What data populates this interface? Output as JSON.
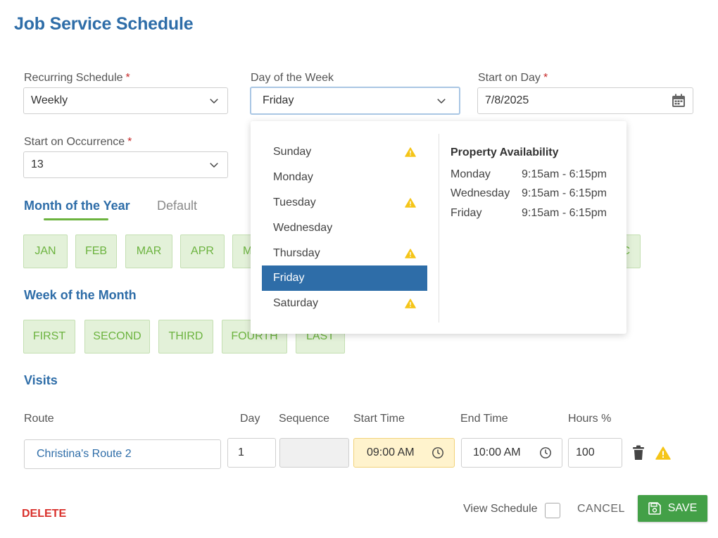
{
  "page": {
    "title": "Job Service Schedule"
  },
  "form": {
    "recurring": {
      "label": "Recurring Schedule",
      "value": "Weekly"
    },
    "day_of_week": {
      "label": "Day of the Week",
      "value": "Friday"
    },
    "start_on_day": {
      "label": "Start on Day",
      "value": "7/8/2025"
    },
    "start_on_occurrence": {
      "label": "Start on Occurrence",
      "value": "13"
    },
    "required_marker": "*"
  },
  "tabs": [
    {
      "label": "Month of the Year",
      "active": true
    },
    {
      "label": "Default",
      "active": false
    }
  ],
  "months": [
    "JAN",
    "FEB",
    "MAR",
    "APR",
    "M",
    "C"
  ],
  "week_section": {
    "title": "Week of the Month",
    "weeks": [
      "FIRST",
      "SECOND",
      "THIRD",
      "FOURTH",
      "LAST"
    ]
  },
  "visits": {
    "title": "Visits",
    "columns": [
      "Route",
      "Day",
      "Sequence",
      "Start Time",
      "End Time",
      "Hours %"
    ],
    "row": {
      "route": "Christina's Route 2",
      "day": "1",
      "sequence": "",
      "start_time": "09:00 AM",
      "end_time": "10:00 AM",
      "hours_pct": "100"
    }
  },
  "footer": {
    "delete_label": "DELETE",
    "view_schedule_label": "View Schedule",
    "view_schedule_checked": false,
    "cancel_label": "CANCEL",
    "save_label": "SAVE"
  },
  "dropdown": {
    "options": [
      {
        "label": "Sunday",
        "warning": true,
        "selected": false
      },
      {
        "label": "Monday",
        "warning": false,
        "selected": false
      },
      {
        "label": "Tuesday",
        "warning": true,
        "selected": false
      },
      {
        "label": "Wednesday",
        "warning": false,
        "selected": false
      },
      {
        "label": "Thursday",
        "warning": true,
        "selected": false
      },
      {
        "label": "Friday",
        "warning": false,
        "selected": true
      },
      {
        "label": "Saturday",
        "warning": true,
        "selected": false
      }
    ],
    "availability": {
      "title": "Property Availability",
      "rows": [
        {
          "day": "Monday",
          "time": "9:15am - 6:15pm"
        },
        {
          "day": "Wednesday",
          "time": "9:15am - 6:15pm"
        },
        {
          "day": "Friday",
          "time": "9:15am - 6:15pm"
        }
      ]
    }
  },
  "colors": {
    "primary": "#2e6da8",
    "accent_green": "#6cb33f",
    "save_green": "#43a047",
    "danger": "#d9302b",
    "warning": "#f5c518"
  },
  "icons": {
    "chevron": "chevron-down-icon",
    "calendar": "calendar-icon",
    "clock": "clock-icon",
    "trash": "trash-icon",
    "warning": "warning-icon",
    "save": "floppy-disk-icon"
  }
}
